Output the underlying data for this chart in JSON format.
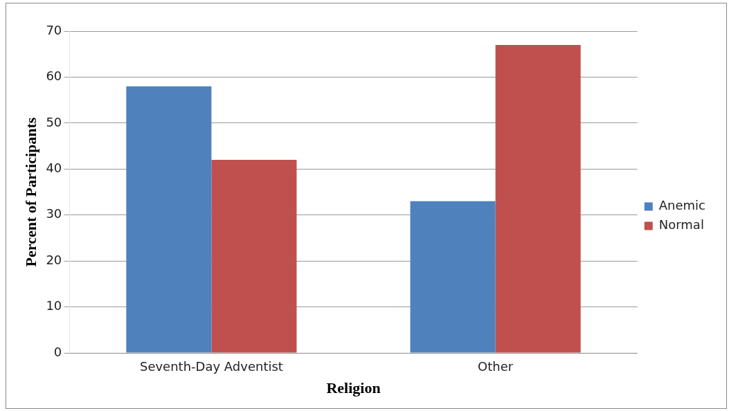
{
  "chart_data": {
    "type": "bar",
    "xlabel": "Religion",
    "ylabel": "Percent of Participants",
    "categories": [
      "Seventh-Day Adventist",
      "Other"
    ],
    "series": [
      {
        "name": "Anemic",
        "color": "#4f81bd",
        "values": [
          58,
          33
        ]
      },
      {
        "name": "Normal",
        "color": "#c0504d",
        "values": [
          42,
          67
        ]
      }
    ],
    "ylim": [
      0,
      70
    ],
    "yticks": [
      0,
      10,
      20,
      30,
      40,
      50,
      60,
      70
    ],
    "grid": "y",
    "legend": "right"
  }
}
